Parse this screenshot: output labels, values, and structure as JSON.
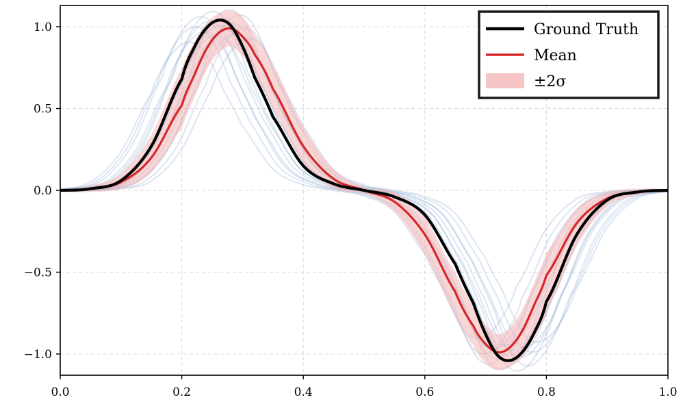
{
  "chart_data": {
    "type": "line",
    "title": "",
    "xlabel": "",
    "ylabel": "",
    "xlim": [
      0.0,
      1.0
    ],
    "ylim": [
      -1.13,
      1.13
    ],
    "grid": true,
    "legend_position": "top-right",
    "x_ticks": [
      0.0,
      0.2,
      0.4,
      0.6,
      0.8,
      1.0
    ],
    "x_tick_labels": [
      "0.0",
      "0.2",
      "0.4",
      "0.6",
      "0.8",
      "1.0"
    ],
    "y_ticks": [
      1.0,
      0.5,
      0.0,
      -0.5,
      -1.0
    ],
    "y_tick_labels": [
      "1.0",
      "0.5",
      "0.0",
      "−0.5",
      "−1.0"
    ],
    "x": [
      0.0,
      0.05,
      0.1,
      0.15,
      0.2,
      0.22,
      0.24,
      0.26,
      0.28,
      0.3,
      0.32,
      0.35,
      0.4,
      0.45,
      0.5,
      0.55,
      0.6,
      0.65,
      0.68,
      0.7,
      0.72,
      0.74,
      0.76,
      0.78,
      0.8,
      0.85,
      0.9,
      0.95,
      1.0
    ],
    "series": [
      {
        "name": "Ground Truth",
        "color": "#000000",
        "values": [
          0.0,
          0.01,
          0.06,
          0.27,
          0.68,
          0.87,
          0.99,
          1.04,
          1.01,
          0.88,
          0.69,
          0.45,
          0.15,
          0.04,
          0.0,
          -0.04,
          -0.15,
          -0.45,
          -0.69,
          -0.88,
          -1.01,
          -1.04,
          -0.99,
          -0.87,
          -0.68,
          -0.27,
          -0.06,
          -0.01,
          0.0
        ]
      },
      {
        "name": "Mean",
        "color": "#d62728",
        "values": [
          0.0,
          0.01,
          0.05,
          0.2,
          0.52,
          0.7,
          0.86,
          0.96,
          0.99,
          0.94,
          0.83,
          0.62,
          0.27,
          0.07,
          0.0,
          -0.07,
          -0.27,
          -0.62,
          -0.83,
          -0.94,
          -0.99,
          -0.96,
          -0.86,
          -0.7,
          -0.52,
          -0.2,
          -0.05,
          -0.01,
          0.0
        ]
      }
    ],
    "band": {
      "name": "±2σ",
      "color": "#f4b6b7",
      "upper": [
        0.0,
        0.03,
        0.1,
        0.34,
        0.74,
        0.9,
        1.02,
        1.08,
        1.1,
        1.06,
        0.95,
        0.76,
        0.39,
        0.13,
        0.02,
        -0.01,
        -0.17,
        -0.5,
        -0.7,
        -0.82,
        -0.88,
        -0.84,
        -0.73,
        -0.56,
        -0.38,
        -0.11,
        -0.01,
        0.01,
        0.01
      ],
      "lower": [
        -0.01,
        -0.01,
        0.01,
        0.11,
        0.38,
        0.56,
        0.73,
        0.84,
        0.88,
        0.82,
        0.7,
        0.5,
        0.17,
        0.01,
        -0.02,
        -0.13,
        -0.39,
        -0.76,
        -0.95,
        -1.06,
        -1.1,
        -1.08,
        -1.02,
        -0.9,
        -0.74,
        -0.34,
        -0.1,
        -0.03,
        0.0
      ]
    },
    "samples": {
      "color": "#6f93c9",
      "shifts": [
        -0.05,
        -0.04,
        -0.032,
        -0.025,
        -0.018,
        -0.012,
        -0.006,
        0.0,
        0.005,
        0.01,
        0.015,
        0.02,
        0.026,
        0.032,
        0.04,
        0.048
      ],
      "scales": [
        0.87,
        0.96,
        1.02,
        0.93,
        0.99,
        1.05,
        0.91,
        0.97,
        1.01,
        0.94,
        1.06,
        0.98,
        0.92,
        1.03,
        0.95,
        0.89
      ]
    },
    "legend": [
      {
        "label": "Ground Truth",
        "kind": "line",
        "color": "#000000"
      },
      {
        "label": "Mean",
        "kind": "line",
        "color": "#d62728"
      },
      {
        "label": "±2σ",
        "kind": "patch",
        "color": "#f4b6b7"
      }
    ]
  }
}
